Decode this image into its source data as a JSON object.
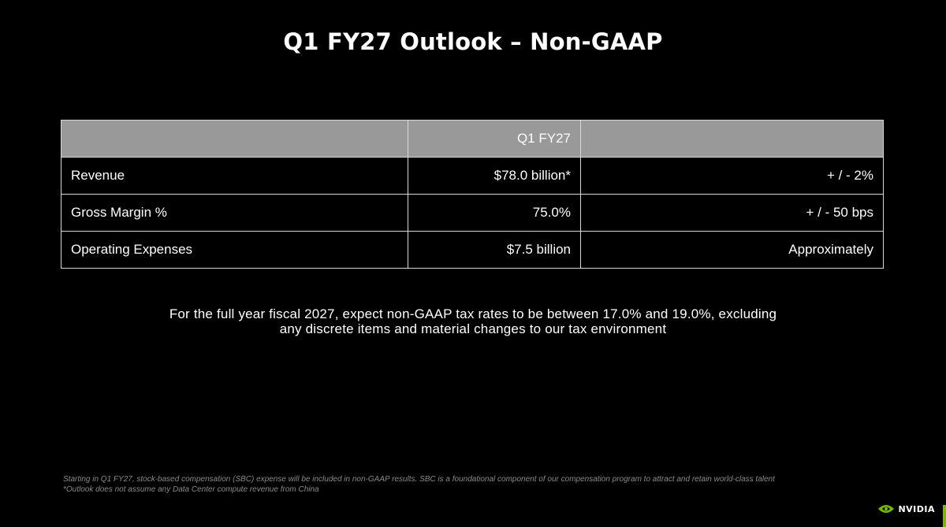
{
  "title": "Q1 FY27 Outlook – Non-GAAP",
  "table": {
    "header": [
      "",
      "Q1 FY27",
      ""
    ],
    "rows": [
      {
        "metric": "Revenue",
        "value": "$78.0 billion*",
        "range": "+ / - 2%"
      },
      {
        "metric": "Gross Margin %",
        "value": "75.0%",
        "range": "+ / - 50 bps"
      },
      {
        "metric": "Operating Expenses",
        "value": "$7.5 billion",
        "range": "Approximately"
      }
    ]
  },
  "note": {
    "line1": "For the full year fiscal 2027, expect non-GAAP tax rates to be between 17.0% and 19.0%, excluding",
    "line2": "any discrete items and material changes to our tax environment"
  },
  "footnotes": [
    "Starting in Q1 FY27, stock-based compensation (SBC) expense will be included in non-GAAP results. SBC is a foundational component of our compensation program to attract and retain world-class talent",
    "*Outlook does not assume any Data Center compute revenue from China"
  ],
  "brand": {
    "name": "NVIDIA",
    "icon": "nvidia-eye-logo",
    "accent_color": "#76b900"
  },
  "colors": {
    "background": "#000000",
    "header_fill": "#999999",
    "border": "#d9d9d9"
  }
}
